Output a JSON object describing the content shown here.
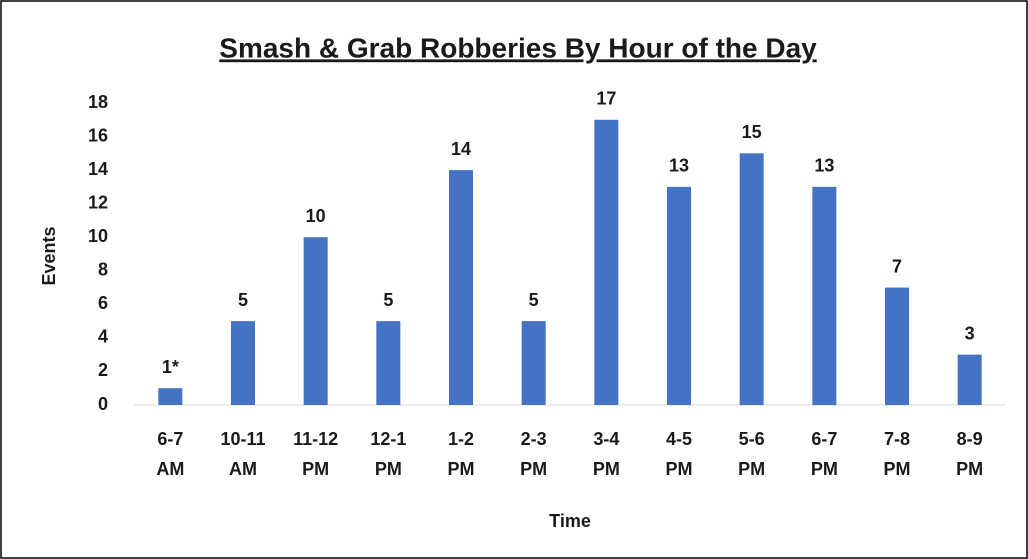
{
  "chart_data": {
    "type": "bar",
    "title": "Smash & Grab Robberies By Hour of the Day",
    "x_label": "Time",
    "y_label": "Events",
    "categories": [
      "6-7 AM",
      "10-11 AM",
      "11-12 PM",
      "12-1 PM",
      "1-2 PM",
      "2-3 PM",
      "3-4 PM",
      "4-5 PM",
      "5-6 PM",
      "6-7 PM",
      "7-8 PM",
      "8-9 PM"
    ],
    "values": [
      1,
      5,
      10,
      5,
      14,
      5,
      17,
      13,
      15,
      13,
      7,
      3
    ],
    "value_labels": [
      "1*",
      "5",
      "10",
      "5",
      "14",
      "5",
      "17",
      "13",
      "15",
      "13",
      "7",
      "3"
    ],
    "color": "#4472c4",
    "ylim": [
      0,
      18
    ],
    "yticks": [
      0,
      2,
      4,
      6,
      8,
      10,
      12,
      14,
      16,
      18
    ],
    "grid": false
  }
}
